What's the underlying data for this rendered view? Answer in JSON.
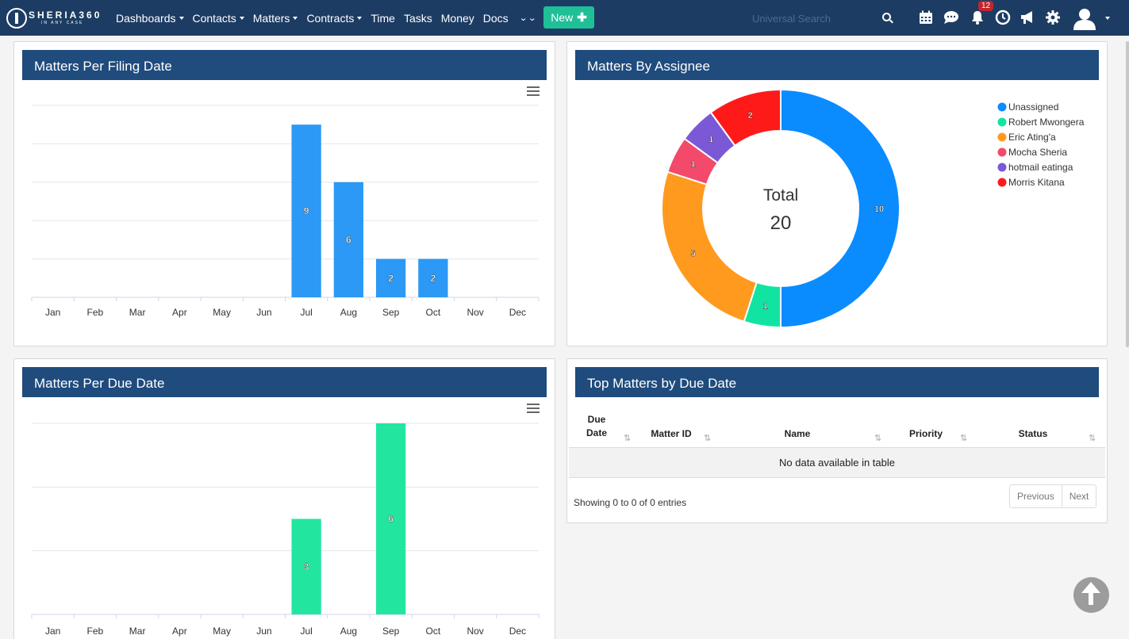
{
  "navbar": {
    "logo_text": "SHERIA360",
    "logo_tagline": "IN ANY CASE",
    "menu": [
      {
        "label": "Dashboards",
        "dropdown": true
      },
      {
        "label": "Contacts",
        "dropdown": true
      },
      {
        "label": "Matters",
        "dropdown": true
      },
      {
        "label": "Contracts",
        "dropdown": true
      },
      {
        "label": "Time",
        "dropdown": false
      },
      {
        "label": "Tasks",
        "dropdown": false
      },
      {
        "label": "Money",
        "dropdown": false
      },
      {
        "label": "Docs",
        "dropdown": false
      }
    ],
    "more_icon": "double-chevron-down-icon",
    "new_button_label": "New",
    "search_placeholder": "Universal Search",
    "icons": [
      "calendar-icon",
      "chat-icon",
      "bell-icon",
      "clock-icon",
      "megaphone-icon",
      "gear-icon",
      "user-avatar-icon"
    ],
    "notification_count": "12",
    "colors": {
      "navbar_bg": "#1d3c63",
      "new_button": "#1fbf97",
      "badge": "#c0262d"
    }
  },
  "panels": {
    "filing": {
      "title": "Matters Per Filing Date"
    },
    "assignee": {
      "title": "Matters By Assignee"
    },
    "due": {
      "title": "Matters Per Due Date"
    },
    "top": {
      "title": "Top Matters by Due Date"
    }
  },
  "chart_data": [
    {
      "type": "bar",
      "title": "Matters Per Filing Date",
      "categories": [
        "Jan",
        "Feb",
        "Mar",
        "Apr",
        "May",
        "Jun",
        "Jul",
        "Aug",
        "Sep",
        "Oct",
        "Nov",
        "Dec"
      ],
      "values": [
        0,
        0,
        0,
        0,
        0,
        0,
        9,
        6,
        2,
        2,
        0,
        0
      ],
      "ylim": [
        0,
        10
      ],
      "grid": true,
      "color": "#2b99f5"
    },
    {
      "type": "pie",
      "title": "Matters By Assignee",
      "donut": true,
      "center_label": "Total",
      "center_value": "20",
      "legend_position": "top-right",
      "slices": [
        {
          "name": "Unassigned",
          "value": 10,
          "color": "#0a8cff"
        },
        {
          "name": "Robert Mwongera",
          "value": 1,
          "color": "#11e4a2"
        },
        {
          "name": "Eric Ating'a",
          "value": 5,
          "color": "#ff9a1f"
        },
        {
          "name": "Mocha Sheria",
          "value": 1,
          "color": "#f34a6b"
        },
        {
          "name": "hotmail eatinga",
          "value": 1,
          "color": "#7b59d6"
        },
        {
          "name": "Morris Kitana",
          "value": 2,
          "color": "#ff1a1a"
        }
      ]
    },
    {
      "type": "bar",
      "title": "Matters Per Due Date",
      "categories": [
        "Jan",
        "Feb",
        "Mar",
        "Apr",
        "May",
        "Jun",
        "Jul",
        "Aug",
        "Sep",
        "Oct",
        "Nov",
        "Dec"
      ],
      "values": [
        0,
        0,
        0,
        0,
        0,
        0,
        3,
        0,
        6,
        0,
        0,
        0
      ],
      "ylim": [
        0,
        6
      ],
      "grid": true,
      "color": "#22e6a0"
    }
  ],
  "table": {
    "columns": [
      {
        "line1": "Due",
        "line2": "Date"
      },
      {
        "line1": "",
        "line2": "Matter ID"
      },
      {
        "line1": "",
        "line2": "Name"
      },
      {
        "line1": "",
        "line2": "Priority"
      },
      {
        "line1": "",
        "line2": "Status"
      }
    ],
    "empty_text": "No data available in table",
    "info_text": "Showing 0 to 0 of 0 entries",
    "previous_label": "Previous",
    "next_label": "Next"
  }
}
